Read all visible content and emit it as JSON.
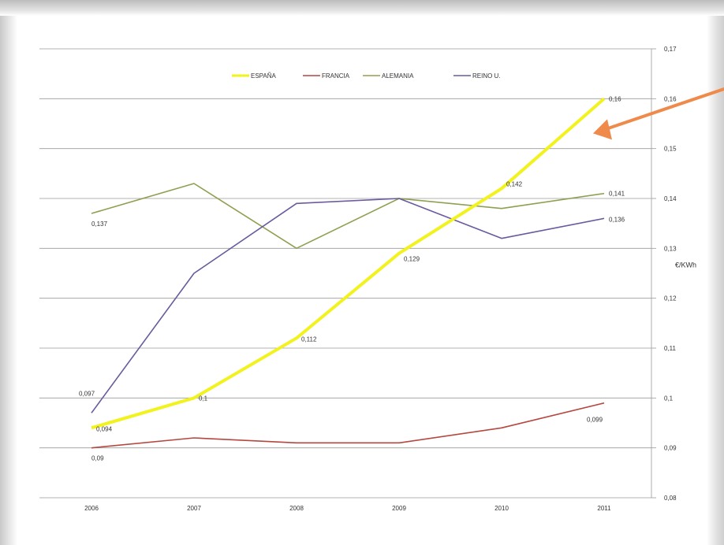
{
  "chart_data": {
    "type": "line",
    "categories": [
      "2006",
      "2007",
      "2008",
      "2009",
      "2010",
      "2011"
    ],
    "series": [
      {
        "name": "ESPAÑA",
        "color": "#f2f21e",
        "values": [
          0.094,
          0.1,
          0.112,
          0.129,
          0.142,
          0.16
        ]
      },
      {
        "name": "FRANCIA",
        "color": "#b5473f",
        "values": [
          0.09,
          0.092,
          0.091,
          0.091,
          0.094,
          0.099
        ]
      },
      {
        "name": "ALEMANIA",
        "color": "#8ea050",
        "values": [
          0.137,
          0.143,
          0.13,
          0.14,
          0.138,
          0.141
        ]
      },
      {
        "name": "REINO U.",
        "color": "#6a5a9e",
        "values": [
          0.097,
          0.125,
          0.139,
          0.14,
          0.132,
          0.136
        ]
      }
    ],
    "data_labels": [
      {
        "series": "ESPAÑA",
        "index": 0,
        "text": "0,094"
      },
      {
        "series": "ESPAÑA",
        "index": 1,
        "text": "0,1"
      },
      {
        "series": "ESPAÑA",
        "index": 2,
        "text": "0,112"
      },
      {
        "series": "ESPAÑA",
        "index": 3,
        "text": "0,129"
      },
      {
        "series": "ESPAÑA",
        "index": 4,
        "text": "0,142"
      },
      {
        "series": "ESPAÑA",
        "index": 5,
        "text": "0,16"
      },
      {
        "series": "FRANCIA",
        "index": 0,
        "text": "0,09"
      },
      {
        "series": "FRANCIA",
        "index": 5,
        "text": "0,099"
      },
      {
        "series": "ALEMANIA",
        "index": 0,
        "text": "0,137"
      },
      {
        "series": "ALEMANIA",
        "index": 5,
        "text": "0,141"
      },
      {
        "series": "REINO U.",
        "index": 0,
        "text": "0,097"
      },
      {
        "series": "REINO U.",
        "index": 5,
        "text": "0,136"
      }
    ],
    "y_ticks": [
      "0,08",
      "0,09",
      "0,1",
      "0,11",
      "0,12",
      "0,13",
      "0,14",
      "0,15",
      "0,16",
      "0,17"
    ],
    "ylim": [
      0.08,
      0.17
    ],
    "ylabel": "€/KWh",
    "y_axis_side": "right",
    "grid": true,
    "legend_placement": "top-center",
    "annotation": {
      "type": "arrow",
      "color": "#f08a4b",
      "points_to": {
        "series": "ESPAÑA",
        "index": 5
      }
    }
  }
}
